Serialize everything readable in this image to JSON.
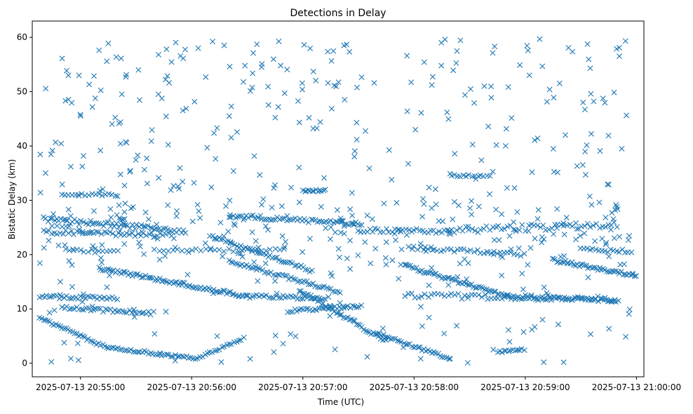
{
  "chart_data": {
    "type": "scatter",
    "title": "Detections in Delay",
    "xlabel": "Time (UTC)",
    "ylabel": "Bistatic Delay (km)",
    "xlim_seconds": [
      -26,
      304
    ],
    "x_origin_label": "2025-07-13 20:55:00",
    "ylim": [
      -2.5,
      63
    ],
    "xticks": [
      {
        "s": 0,
        "label": "2025-07-13 20:55:00"
      },
      {
        "s": 60,
        "label": "2025-07-13 20:56:00"
      },
      {
        "s": 120,
        "label": "2025-07-13 20:57:00"
      },
      {
        "s": 180,
        "label": "2025-07-13 20:58:00"
      },
      {
        "s": 240,
        "label": "2025-07-13 20:59:00"
      },
      {
        "s": 300,
        "label": "2025-07-13 21:00:00"
      }
    ],
    "yticks": [
      0,
      10,
      20,
      30,
      40,
      50,
      60
    ],
    "marker": "x",
    "color": "#1f77b4",
    "series": [
      {
        "name": "Detections",
        "tracks": [
          {
            "t0": -22,
            "t1": 14,
            "y0": 8.4,
            "y1": 2.9,
            "step": 1.1,
            "noise": 0.25
          },
          {
            "t0": 14,
            "t1": 62,
            "y0": 2.9,
            "y1": 0.9,
            "step": 1.2,
            "noise": 0.25
          },
          {
            "t0": 62,
            "t1": 88,
            "y0": 0.8,
            "y1": 4.5,
            "step": 1.3,
            "noise": 0.25
          },
          {
            "t0": -20,
            "t1": 58,
            "y0": 26.5,
            "y1": 24.3,
            "step": 1.2,
            "noise": 0.45
          },
          {
            "t0": -22,
            "t1": 20,
            "y0": 12.2,
            "y1": 12.0,
            "step": 1.3,
            "noise": 0.3
          },
          {
            "t0": -10,
            "t1": 40,
            "y0": 10.2,
            "y1": 9.2,
            "step": 1.3,
            "noise": 0.3
          },
          {
            "t0": -20,
            "t1": 50,
            "y0": 24.2,
            "y1": 23.5,
            "step": 1.5,
            "noise": 0.4
          },
          {
            "t0": -10,
            "t1": 20,
            "y0": 31.0,
            "y1": 31.0,
            "step": 1.8,
            "noise": 0.2
          },
          {
            "t0": 10,
            "t1": 90,
            "y0": 17.5,
            "y1": 12.3,
            "step": 1.0,
            "noise": 0.3
          },
          {
            "t0": 90,
            "t1": 132,
            "y0": 12.3,
            "y1": 12.0,
            "step": 1.3,
            "noise": 0.3
          },
          {
            "t0": 80,
            "t1": 152,
            "y0": 27.2,
            "y1": 25.6,
            "step": 1.2,
            "noise": 0.35
          },
          {
            "t0": 70,
            "t1": 126,
            "y0": 23.4,
            "y1": 16.9,
            "step": 1.2,
            "noise": 0.3
          },
          {
            "t0": 80,
            "t1": 140,
            "y0": 18.8,
            "y1": 13.1,
            "step": 1.2,
            "noise": 0.3
          },
          {
            "t0": 118,
            "t1": 165,
            "y0": 13.5,
            "y1": 4.0,
            "step": 1.0,
            "noise": 0.3
          },
          {
            "t0": 112,
            "t1": 152,
            "y0": 9.6,
            "y1": 10.6,
            "step": 1.2,
            "noise": 0.25
          },
          {
            "t0": 160,
            "t1": 200,
            "y0": 5.5,
            "y1": 0.7,
            "step": 1.1,
            "noise": 0.25
          },
          {
            "t0": 150,
            "t1": 200,
            "y0": 24.5,
            "y1": 24.3,
            "step": 1.5,
            "noise": 0.4
          },
          {
            "t0": 200,
            "t1": 290,
            "y0": 24.5,
            "y1": 25.5,
            "step": 1.6,
            "noise": 0.6
          },
          {
            "t0": 175,
            "t1": 230,
            "y0": 18.0,
            "y1": 12.3,
            "step": 1.0,
            "noise": 0.3
          },
          {
            "t0": 230,
            "t1": 290,
            "y0": 12.3,
            "y1": 11.5,
            "step": 1.2,
            "noise": 0.3
          },
          {
            "t0": 175,
            "t1": 290,
            "y0": 12.5,
            "y1": 11.8,
            "step": 1.8,
            "noise": 0.5
          },
          {
            "t0": 255,
            "t1": 300,
            "y0": 19.0,
            "y1": 16.1,
            "step": 1.0,
            "noise": 0.3
          },
          {
            "t0": 180,
            "t1": 240,
            "y0": 21.2,
            "y1": 20.0,
            "step": 1.8,
            "noise": 0.35
          },
          {
            "t0": 40,
            "t1": 110,
            "y0": 20.8,
            "y1": 20.8,
            "step": 2.5,
            "noise": 0.3
          },
          {
            "t0": -8,
            "t1": 20,
            "y0": 20.8,
            "y1": 20.8,
            "step": 2.0,
            "noise": 0.3
          },
          {
            "t0": 200,
            "t1": 222,
            "y0": 34.5,
            "y1": 34.5,
            "step": 1.6,
            "noise": 0.2
          },
          {
            "t0": 120,
            "t1": 132,
            "y0": 31.8,
            "y1": 31.8,
            "step": 1.0,
            "noise": 0.2
          },
          {
            "t0": 270,
            "t1": 298,
            "y0": 20.9,
            "y1": 20.6,
            "step": 1.6,
            "noise": 0.3
          },
          {
            "t0": 225,
            "t1": 240,
            "y0": 2.0,
            "y1": 2.6,
            "step": 1.2,
            "noise": 0.2
          }
        ],
        "scatter_count": 560
      }
    ]
  }
}
